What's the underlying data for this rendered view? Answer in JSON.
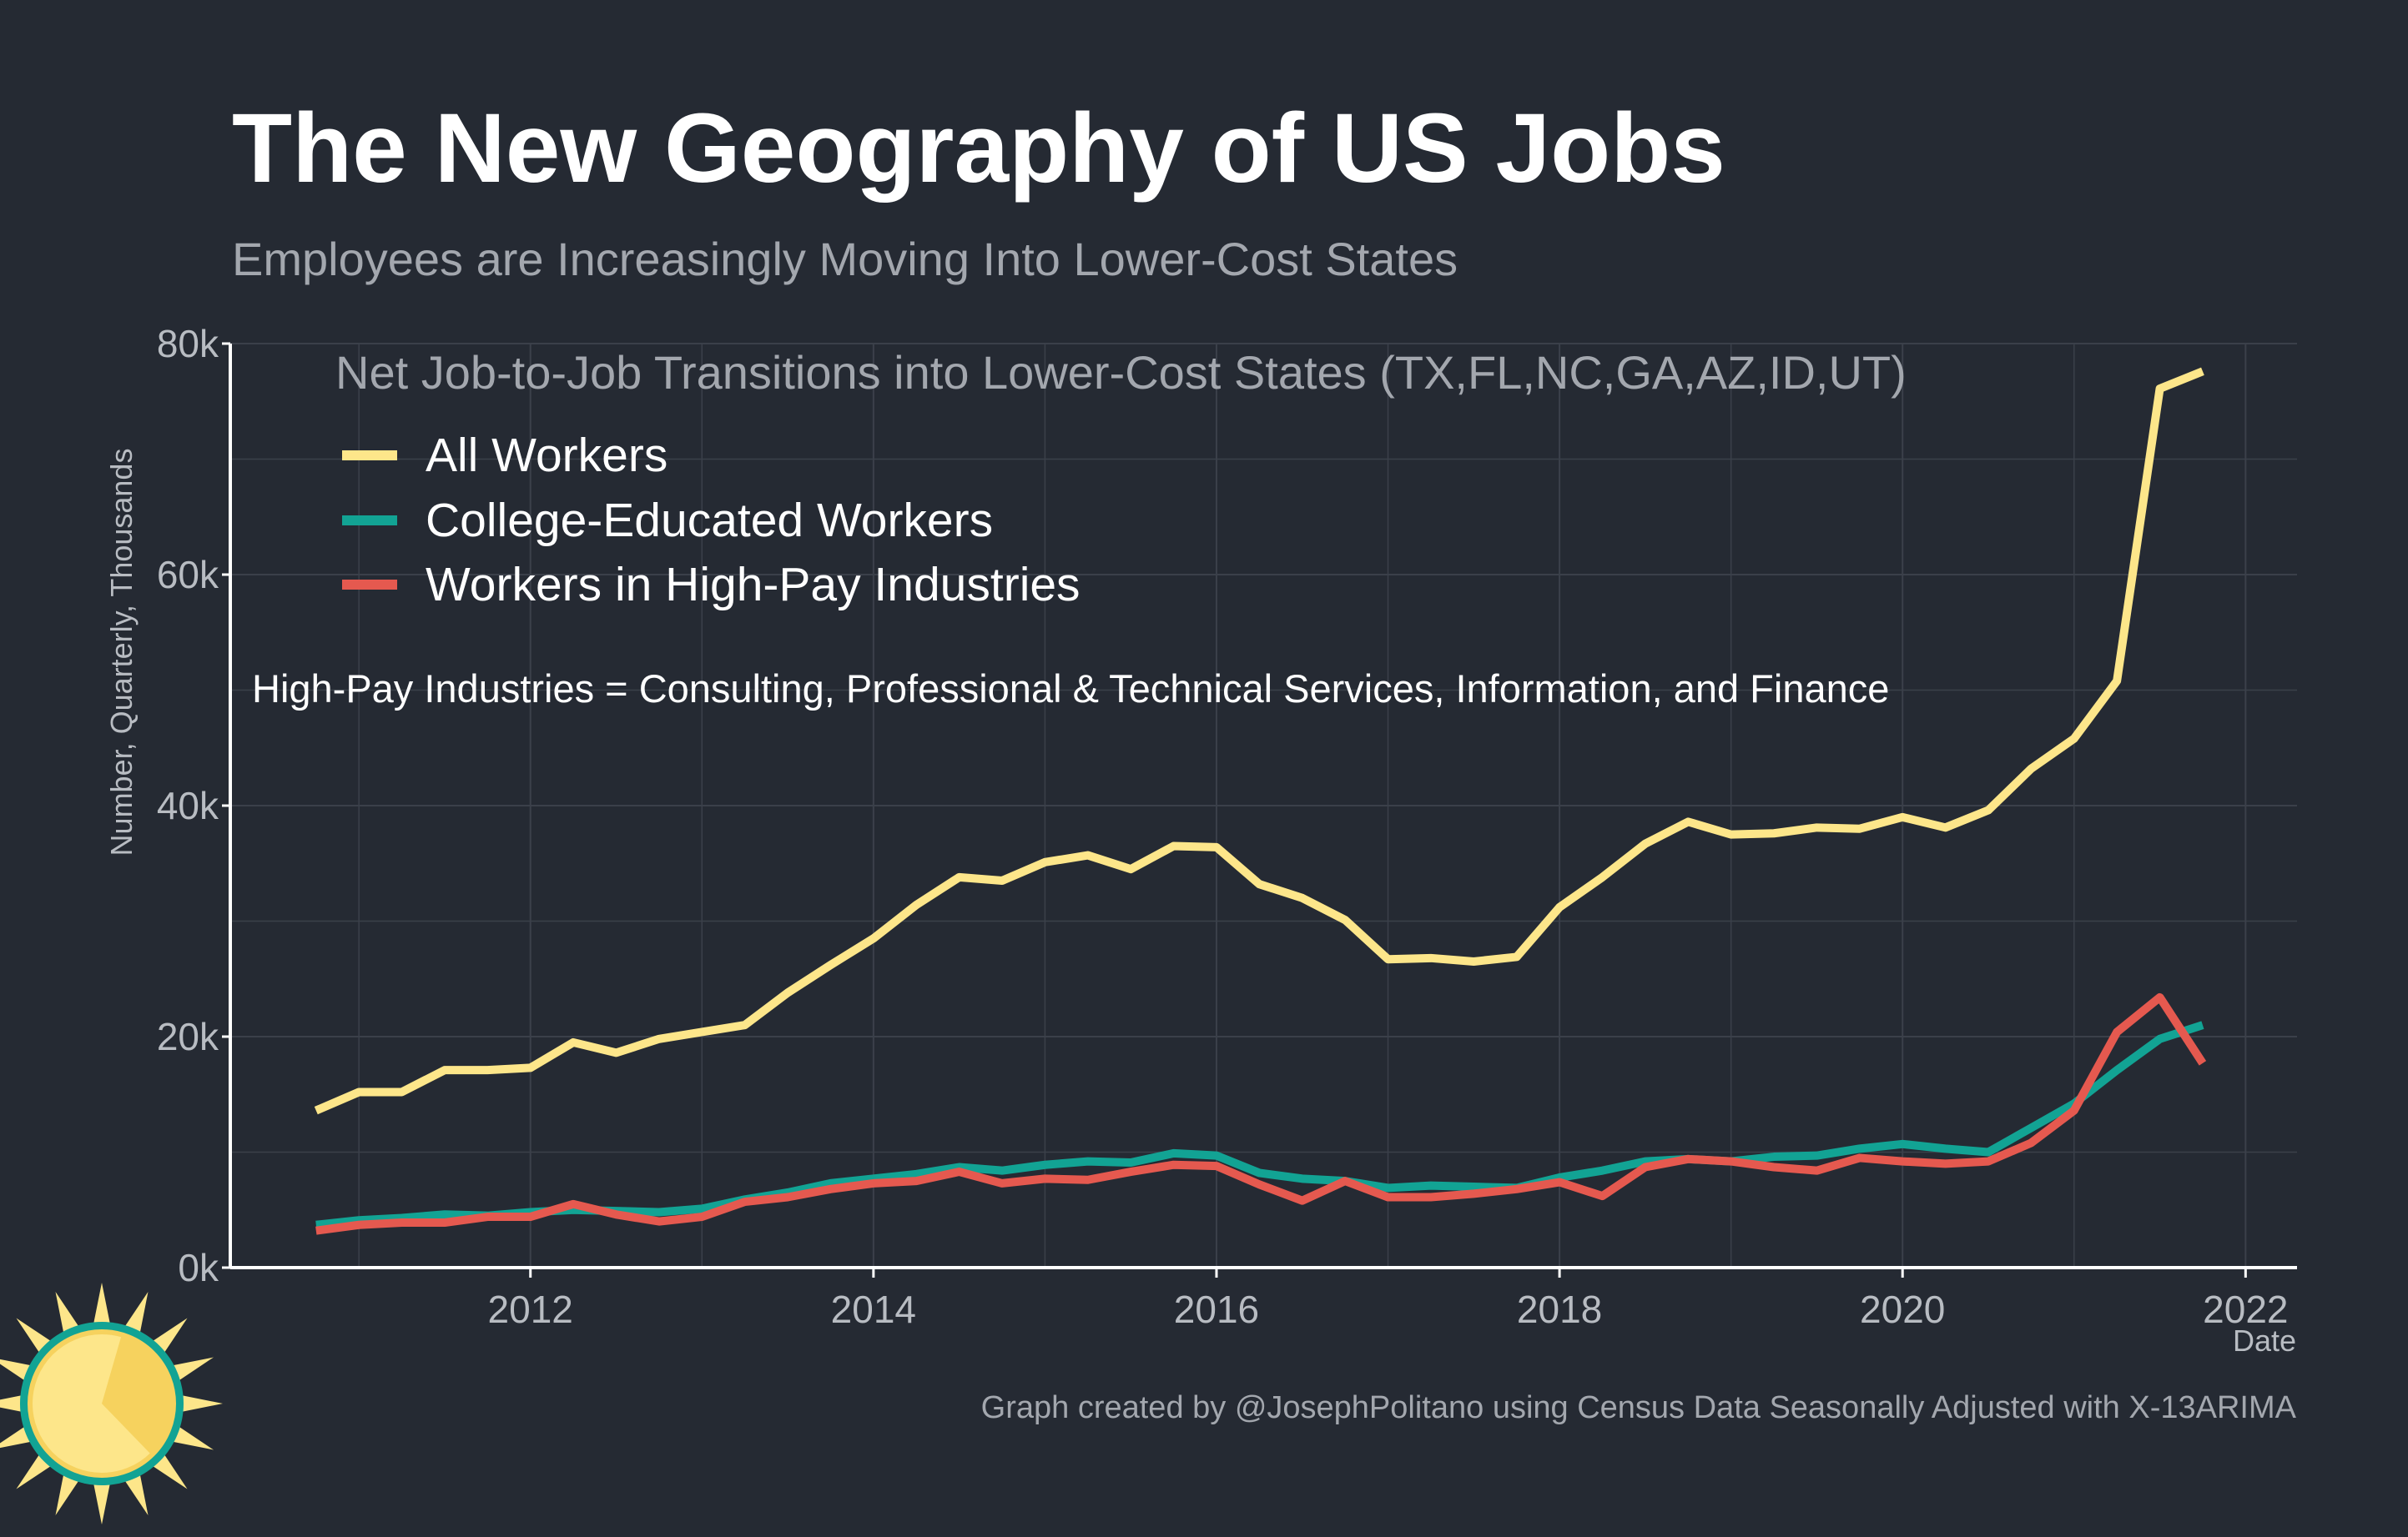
{
  "header": {
    "title": "The New Geography of US Jobs",
    "subtitle": "Employees are Increasingly Moving Into Lower-Cost States"
  },
  "legend_title": "Net Job-to-Job Transitions into Lower-Cost States (TX,FL,NC,GA,AZ,ID,UT)",
  "annotation": "High-Pay Industries = Consulting, Professional & Technical Services, Information, and Finance",
  "caption": "Graph created by @JosephPolitano using Census Data Seasonally Adjusted with X-13ARIMA",
  "logo_icon": "sun-icon",
  "chart_data": {
    "type": "line",
    "xlabel": "Date",
    "ylabel": "Number, Quarterly, Thousands",
    "xlim": [
      2010.25,
      2022.3
    ],
    "ylim": [
      0,
      80000
    ],
    "x_ticks": [
      2012,
      2014,
      2016,
      2018,
      2020,
      2022
    ],
    "x_tick_labels": [
      "2012",
      "2014",
      "2016",
      "2018",
      "2020",
      "2022"
    ],
    "y_ticks": [
      0,
      20000,
      40000,
      60000,
      80000
    ],
    "y_tick_labels": [
      "0k",
      "20k",
      "40k",
      "60k",
      "80k"
    ],
    "grid": true,
    "legend_position": "top-left",
    "x": [
      2010.75,
      2011.0,
      2011.25,
      2011.5,
      2011.75,
      2012.0,
      2012.25,
      2012.5,
      2012.75,
      2013.0,
      2013.25,
      2013.5,
      2013.75,
      2014.0,
      2014.25,
      2014.5,
      2014.75,
      2015.0,
      2015.25,
      2015.5,
      2015.75,
      2016.0,
      2016.25,
      2016.5,
      2016.75,
      2017.0,
      2017.25,
      2017.5,
      2017.75,
      2018.0,
      2018.25,
      2018.5,
      2018.75,
      2019.0,
      2019.25,
      2019.5,
      2019.75,
      2020.0,
      2020.25,
      2020.5,
      2020.75,
      2021.0,
      2021.25,
      2021.5,
      2021.75
    ],
    "series": [
      {
        "name": "All Workers",
        "color": "#fde68a",
        "values": [
          13600,
          15200,
          15200,
          17100,
          17100,
          17300,
          19500,
          18600,
          19800,
          20400,
          21000,
          23800,
          26200,
          28500,
          31400,
          33800,
          33500,
          35100,
          35700,
          34500,
          36500,
          36400,
          33200,
          32000,
          30100,
          26700,
          26800,
          26500,
          26900,
          31200,
          33800,
          36700,
          38600,
          37500,
          37600,
          38100,
          38000,
          39000,
          38100,
          39600,
          43200,
          45800,
          50800,
          76100,
          77600
        ]
      },
      {
        "name": "College-Educated Workers",
        "color": "#12a394",
        "values": [
          3700,
          4100,
          4300,
          4600,
          4500,
          4800,
          5000,
          4900,
          4800,
          5100,
          5900,
          6500,
          7300,
          7700,
          8100,
          8700,
          8400,
          8900,
          9200,
          9100,
          9900,
          9700,
          8200,
          7700,
          7500,
          6900,
          7100,
          7000,
          6900,
          7800,
          8400,
          9200,
          9400,
          9200,
          9600,
          9700,
          10300,
          10700,
          10300,
          10000,
          12100,
          14200,
          17100,
          19800,
          21000
        ]
      },
      {
        "name": "Workers in High-Pay Industries",
        "color": "#e5594f",
        "values": [
          3200,
          3700,
          3900,
          3900,
          4400,
          4400,
          5500,
          4600,
          4000,
          4400,
          5700,
          6100,
          6800,
          7300,
          7500,
          8300,
          7300,
          7700,
          7600,
          8300,
          8900,
          8800,
          7200,
          5800,
          7500,
          6100,
          6100,
          6400,
          6800,
          7400,
          6200,
          8700,
          9400,
          9200,
          8700,
          8400,
          9500,
          9200,
          9000,
          9200,
          10800,
          13600,
          20400,
          23400,
          17700
        ]
      }
    ]
  }
}
